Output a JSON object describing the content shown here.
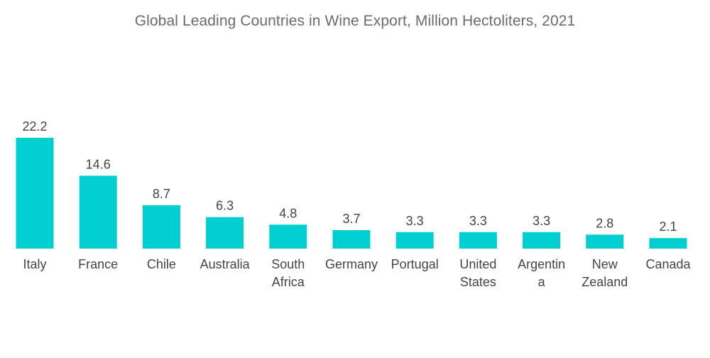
{
  "chart_data": {
    "type": "bar",
    "title": "Global Leading Countries in Wine Export, Million Hectoliters, 2021",
    "categories": [
      "Italy",
      "France",
      "Chile",
      "Australia",
      "South Africa",
      "Germany",
      "Portugal",
      "United States",
      "Argentina",
      "New Zealand",
      "Canada"
    ],
    "category_label_lines": [
      [
        "Italy"
      ],
      [
        "France"
      ],
      [
        "Chile"
      ],
      [
        "Australia"
      ],
      [
        "South",
        "Africa"
      ],
      [
        "Germany"
      ],
      [
        "Portugal"
      ],
      [
        "United",
        "States"
      ],
      [
        "Argentin",
        "a"
      ],
      [
        "New",
        "Zealand"
      ],
      [
        "Canada"
      ]
    ],
    "values": [
      22.2,
      14.6,
      8.7,
      6.3,
      4.8,
      3.7,
      3.3,
      3.3,
      3.3,
      2.8,
      2.1
    ],
    "value_labels": [
      "22.2",
      "14.6",
      "8.7",
      "6.3",
      "4.8",
      "3.7",
      "3.3",
      "3.3",
      "3.3",
      "2.8",
      "2.1"
    ],
    "xlabel": "",
    "ylabel": "",
    "ylim": [
      0,
      22.2
    ],
    "grid": false,
    "legend": "none",
    "bar_color": "#00CED1"
  }
}
